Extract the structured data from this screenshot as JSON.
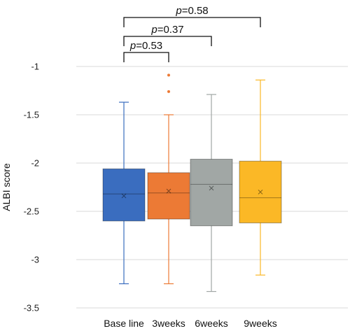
{
  "chart_data": {
    "type": "box",
    "ylabel": "ALBI score",
    "xlabel": "",
    "ylim": [
      -3.5,
      -1
    ],
    "yticks": [
      -1,
      -1.5,
      -2,
      -2.5,
      -3,
      -3.5
    ],
    "ytick_labels": [
      "-1",
      "-1.5",
      "-2",
      "-2.5",
      "-3",
      "-3.5"
    ],
    "grid": true,
    "categories": [
      "Base line",
      "3weeks",
      "6weeks",
      "9weeks"
    ],
    "series": [
      {
        "category": "Base line",
        "color": "#3a6dbf",
        "whisker_low": -3.25,
        "q1": -2.6,
        "median": -2.32,
        "q3": -2.06,
        "whisker_high": -1.37,
        "mean": -2.34,
        "outliers": []
      },
      {
        "category": "3weeks",
        "color": "#ec7a35",
        "whisker_low": -3.25,
        "q1": -2.58,
        "median": -2.31,
        "q3": -2.1,
        "whisker_high": -1.5,
        "mean": -2.29,
        "outliers": [
          -1.09,
          -1.26
        ]
      },
      {
        "category": "6weeks",
        "color": "#a1a7a5",
        "whisker_low": -3.33,
        "q1": -2.65,
        "median": -2.22,
        "q3": -1.96,
        "whisker_high": -1.29,
        "mean": -2.26,
        "outliers": []
      },
      {
        "category": "9weeks",
        "color": "#fbb826",
        "whisker_low": -3.16,
        "q1": -2.62,
        "median": -2.36,
        "q3": -1.98,
        "whisker_high": -1.14,
        "mean": -2.3,
        "outliers": []
      }
    ],
    "comparisons": [
      {
        "from": "Base line",
        "to": "3weeks",
        "prefix": "p",
        "value": "=0.53"
      },
      {
        "from": "Base line",
        "to": "6weeks",
        "prefix": "p",
        "value": "=0.37"
      },
      {
        "from": "Base line",
        "to": "9weeks",
        "prefix": "p",
        "value": "=0.58"
      }
    ]
  }
}
